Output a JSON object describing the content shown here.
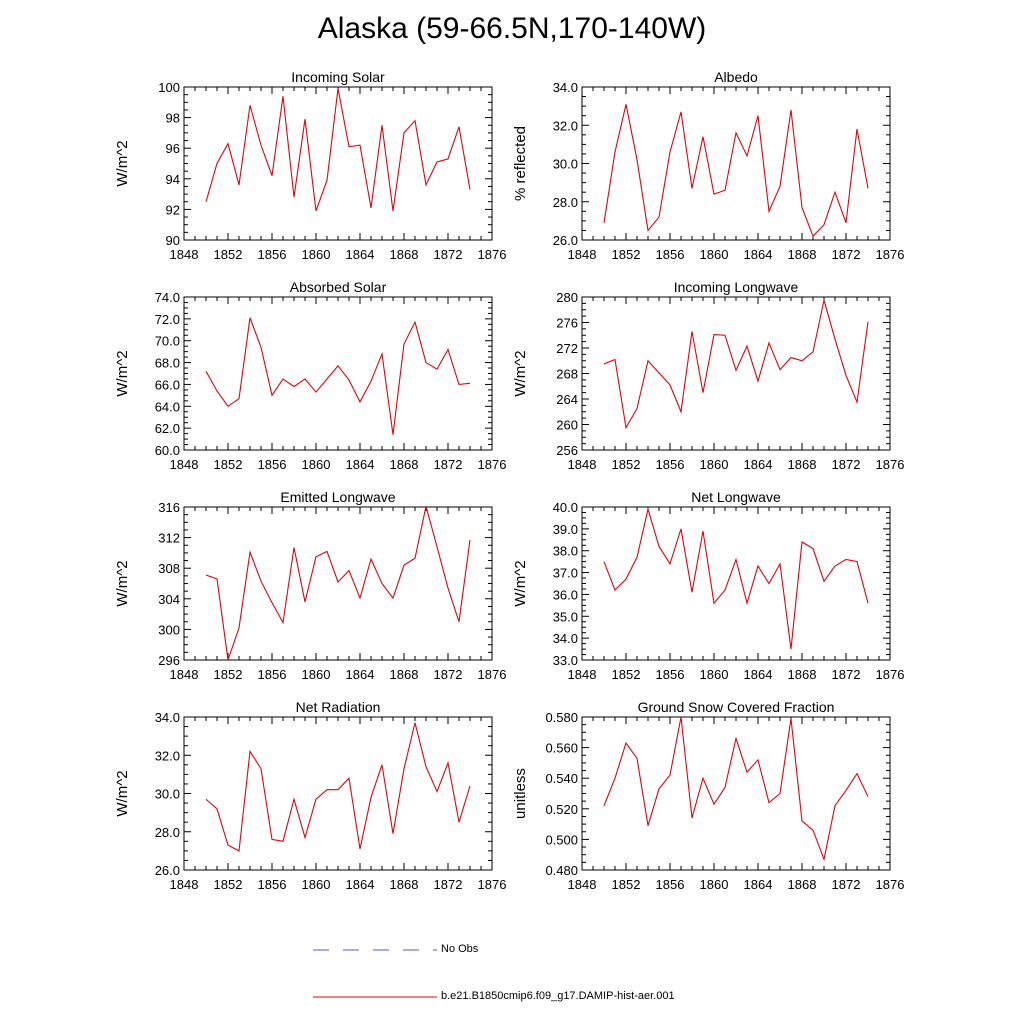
{
  "title": "Alaska (59-66.5N,170-140W)",
  "legend": [
    {
      "label": "No Obs",
      "color": "#4a5fc1",
      "style": "dashed"
    },
    {
      "label": "b.e21.B1850cmip6.f09_g17.DAMIP-hist-aer.001",
      "color": "#e8000b",
      "style": "solid"
    }
  ],
  "line_color": "#e8000b",
  "chart_data": [
    {
      "type": "line",
      "title": "Incoming Solar",
      "xlabel": "",
      "ylabel": "W/m^2",
      "xlim": [
        1848,
        1876
      ],
      "ylim": [
        90,
        100
      ],
      "xticks": [
        "1848",
        "1852",
        "1856",
        "1860",
        "1864",
        "1868",
        "1872",
        "1876"
      ],
      "yticks": [
        "90",
        "92",
        "94",
        "96",
        "98",
        "100"
      ],
      "x": [
        1850,
        1851,
        1852,
        1853,
        1854,
        1855,
        1856,
        1857,
        1858,
        1859,
        1860,
        1861,
        1862,
        1863,
        1864,
        1865,
        1866,
        1867,
        1868,
        1869,
        1870,
        1871,
        1872,
        1873,
        1874
      ],
      "series": [
        {
          "values": [
            92.5,
            95.0,
            96.3,
            93.6,
            98.8,
            96.2,
            94.2,
            99.4,
            92.8,
            97.9,
            91.9,
            93.9,
            99.9,
            96.1,
            96.2,
            92.1,
            97.5,
            91.9,
            97.0,
            97.8,
            93.6,
            95.1,
            95.3,
            97.4,
            93.3
          ]
        }
      ]
    },
    {
      "type": "line",
      "title": "Albedo",
      "xlabel": "",
      "ylabel": "% reflected",
      "xlim": [
        1848,
        1876
      ],
      "ylim": [
        26.0,
        34.0
      ],
      "xticks": [
        "1848",
        "1852",
        "1856",
        "1860",
        "1864",
        "1868",
        "1872",
        "1876"
      ],
      "yticks": [
        "26.0",
        "28.0",
        "30.0",
        "32.0",
        "34.0"
      ],
      "x": [
        1850,
        1851,
        1852,
        1853,
        1854,
        1855,
        1856,
        1857,
        1858,
        1859,
        1860,
        1861,
        1862,
        1863,
        1864,
        1865,
        1866,
        1867,
        1868,
        1869,
        1870,
        1871,
        1872,
        1873,
        1874
      ],
      "series": [
        {
          "values": [
            26.9,
            30.6,
            33.1,
            30.2,
            26.5,
            27.2,
            30.6,
            32.7,
            28.7,
            31.4,
            28.4,
            28.6,
            31.6,
            30.4,
            32.5,
            27.5,
            28.8,
            32.8,
            27.7,
            26.2,
            26.8,
            28.5,
            26.9,
            31.8,
            28.7
          ]
        }
      ]
    },
    {
      "type": "line",
      "title": "Absorbed Solar",
      "xlabel": "",
      "ylabel": "W/m^2",
      "xlim": [
        1848,
        1876
      ],
      "ylim": [
        60.0,
        74.0
      ],
      "xticks": [
        "1848",
        "1852",
        "1856",
        "1860",
        "1864",
        "1868",
        "1872",
        "1876"
      ],
      "yticks": [
        "60.0",
        "62.0",
        "64.0",
        "66.0",
        "68.0",
        "70.0",
        "72.0",
        "74.0"
      ],
      "x": [
        1850,
        1851,
        1852,
        1853,
        1854,
        1855,
        1856,
        1857,
        1858,
        1859,
        1860,
        1861,
        1862,
        1863,
        1864,
        1865,
        1866,
        1867,
        1868,
        1869,
        1870,
        1871,
        1872,
        1873,
        1874
      ],
      "series": [
        {
          "values": [
            67.2,
            65.4,
            64.0,
            64.7,
            72.1,
            69.4,
            65.0,
            66.5,
            65.8,
            66.5,
            65.3,
            66.5,
            67.7,
            66.4,
            64.4,
            66.3,
            68.8,
            61.4,
            69.7,
            71.7,
            68.0,
            67.4,
            69.2,
            66.0,
            66.1
          ]
        }
      ]
    },
    {
      "type": "line",
      "title": "Incoming Longwave",
      "xlabel": "",
      "ylabel": "W/m^2",
      "xlim": [
        1848,
        1876
      ],
      "ylim": [
        256,
        280
      ],
      "xticks": [
        "1848",
        "1852",
        "1856",
        "1860",
        "1864",
        "1868",
        "1872",
        "1876"
      ],
      "yticks": [
        "256",
        "260",
        "264",
        "268",
        "272",
        "276",
        "280"
      ],
      "x": [
        1850,
        1851,
        1852,
        1853,
        1854,
        1855,
        1856,
        1857,
        1858,
        1859,
        1860,
        1861,
        1862,
        1863,
        1864,
        1865,
        1866,
        1867,
        1868,
        1869,
        1870,
        1871,
        1872,
        1873,
        1874
      ],
      "series": [
        {
          "values": [
            269.5,
            270.2,
            259.5,
            262.5,
            270.0,
            268.1,
            266.2,
            262.0,
            274.6,
            265.0,
            274.1,
            274.0,
            268.5,
            272.3,
            266.8,
            272.8,
            268.6,
            270.5,
            270.0,
            271.4,
            279.5,
            273.4,
            267.7,
            263.5,
            276.1
          ]
        }
      ]
    },
    {
      "type": "line",
      "title": "Emitted Longwave",
      "xlabel": "",
      "ylabel": "W/m^2",
      "xlim": [
        1848,
        1876
      ],
      "ylim": [
        296,
        316
      ],
      "xticks": [
        "1848",
        "1852",
        "1856",
        "1860",
        "1864",
        "1868",
        "1872",
        "1876"
      ],
      "yticks": [
        "296",
        "300",
        "304",
        "308",
        "312",
        "316"
      ],
      "x": [
        1850,
        1851,
        1852,
        1853,
        1854,
        1855,
        1856,
        1857,
        1858,
        1859,
        1860,
        1861,
        1862,
        1863,
        1864,
        1865,
        1866,
        1867,
        1868,
        1869,
        1870,
        1871,
        1872,
        1873,
        1874
      ],
      "series": [
        {
          "values": [
            307.1,
            306.6,
            296.0,
            300.2,
            310.1,
            306.3,
            303.5,
            300.9,
            310.7,
            303.6,
            309.5,
            310.2,
            306.2,
            307.7,
            304.1,
            309.2,
            306.0,
            304.1,
            308.4,
            309.3,
            316.1,
            310.8,
            305.4,
            301.0,
            311.7
          ]
        }
      ]
    },
    {
      "type": "line",
      "title": "Net Longwave",
      "xlabel": "",
      "ylabel": "W/m^2",
      "xlim": [
        1848,
        1876
      ],
      "ylim": [
        33.0,
        40.0
      ],
      "xticks": [
        "1848",
        "1852",
        "1856",
        "1860",
        "1864",
        "1868",
        "1872",
        "1876"
      ],
      "yticks": [
        "33.0",
        "34.0",
        "35.0",
        "36.0",
        "37.0",
        "38.0",
        "39.0",
        "40.0"
      ],
      "x": [
        1850,
        1851,
        1852,
        1853,
        1854,
        1855,
        1856,
        1857,
        1858,
        1859,
        1860,
        1861,
        1862,
        1863,
        1864,
        1865,
        1866,
        1867,
        1868,
        1869,
        1870,
        1871,
        1872,
        1873,
        1874
      ],
      "series": [
        {
          "values": [
            37.5,
            36.2,
            36.7,
            37.7,
            39.9,
            38.2,
            37.4,
            39.0,
            36.1,
            38.9,
            35.6,
            36.2,
            37.6,
            35.6,
            37.3,
            36.5,
            37.4,
            33.5,
            38.4,
            38.1,
            36.6,
            37.3,
            37.6,
            37.5,
            35.6
          ]
        }
      ]
    },
    {
      "type": "line",
      "title": "Net Radiation",
      "xlabel": "",
      "ylabel": "W/m^2",
      "xlim": [
        1848,
        1876
      ],
      "ylim": [
        26.0,
        34.0
      ],
      "xticks": [
        "1848",
        "1852",
        "1856",
        "1860",
        "1864",
        "1868",
        "1872",
        "1876"
      ],
      "yticks": [
        "26.0",
        "28.0",
        "30.0",
        "32.0",
        "34.0"
      ],
      "x": [
        1850,
        1851,
        1852,
        1853,
        1854,
        1855,
        1856,
        1857,
        1858,
        1859,
        1860,
        1861,
        1862,
        1863,
        1864,
        1865,
        1866,
        1867,
        1868,
        1869,
        1870,
        1871,
        1872,
        1873,
        1874
      ],
      "series": [
        {
          "values": [
            29.7,
            29.2,
            27.3,
            27.0,
            32.2,
            31.3,
            27.6,
            27.5,
            29.7,
            27.7,
            29.7,
            30.2,
            30.2,
            30.8,
            27.1,
            29.8,
            31.5,
            27.9,
            31.3,
            33.7,
            31.4,
            30.1,
            31.6,
            28.5,
            30.4
          ]
        }
      ]
    },
    {
      "type": "line",
      "title": "Ground Snow Covered Fraction",
      "xlabel": "",
      "ylabel": "unitless",
      "xlim": [
        1848,
        1876
      ],
      "ylim": [
        0.48,
        0.58
      ],
      "xticks": [
        "1848",
        "1852",
        "1856",
        "1860",
        "1864",
        "1868",
        "1872",
        "1876"
      ],
      "yticks": [
        "0.480",
        "0.500",
        "0.520",
        "0.540",
        "0.560",
        "0.580"
      ],
      "x": [
        1850,
        1851,
        1852,
        1853,
        1854,
        1855,
        1856,
        1857,
        1858,
        1859,
        1860,
        1861,
        1862,
        1863,
        1864,
        1865,
        1866,
        1867,
        1868,
        1869,
        1870,
        1871,
        1872,
        1873,
        1874
      ],
      "series": [
        {
          "values": [
            0.522,
            0.54,
            0.563,
            0.553,
            0.509,
            0.533,
            0.542,
            0.58,
            0.514,
            0.54,
            0.523,
            0.534,
            0.566,
            0.544,
            0.552,
            0.524,
            0.53,
            0.579,
            0.512,
            0.506,
            0.487,
            0.522,
            0.532,
            0.543,
            0.528
          ]
        }
      ]
    }
  ]
}
